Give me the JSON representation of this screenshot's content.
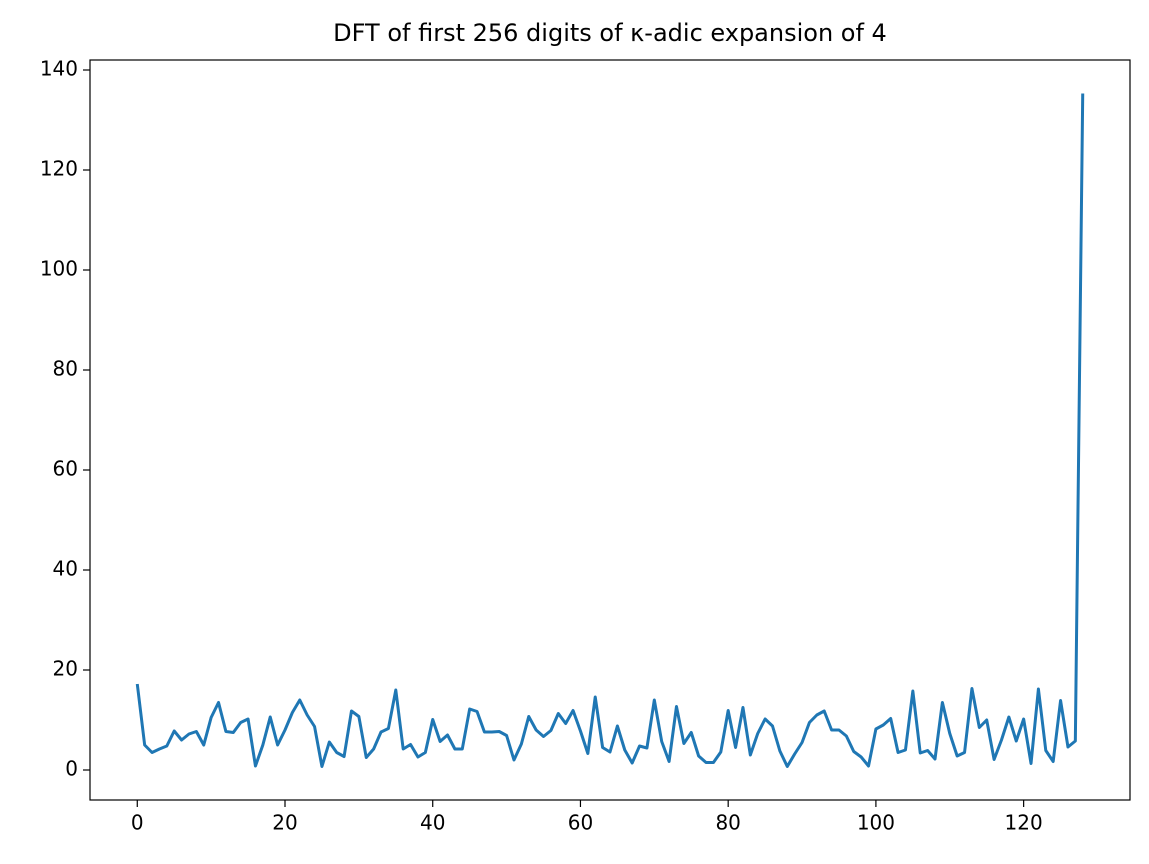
{
  "chart_data": {
    "type": "line",
    "title": "DFT of first 256 digits of κ-adic expansion of 4",
    "x": [
      0,
      1,
      2,
      3,
      4,
      5,
      6,
      7,
      8,
      9,
      10,
      11,
      12,
      13,
      14,
      15,
      16,
      17,
      18,
      19,
      20,
      21,
      22,
      23,
      24,
      25,
      26,
      27,
      28,
      29,
      30,
      31,
      32,
      33,
      34,
      35,
      36,
      37,
      38,
      39,
      40,
      41,
      42,
      43,
      44,
      45,
      46,
      47,
      48,
      49,
      50,
      51,
      52,
      53,
      54,
      55,
      56,
      57,
      58,
      59,
      60,
      61,
      62,
      63,
      64,
      65,
      66,
      67,
      68,
      69,
      70,
      71,
      72,
      73,
      74,
      75,
      76,
      77,
      78,
      79,
      80,
      81,
      82,
      83,
      84,
      85,
      86,
      87,
      88,
      89,
      90,
      91,
      92,
      93,
      94,
      95,
      96,
      97,
      98,
      99,
      100,
      101,
      102,
      103,
      104,
      105,
      106,
      107,
      108,
      109,
      110,
      111,
      112,
      113,
      114,
      115,
      116,
      117,
      118,
      119,
      120,
      121,
      122,
      123,
      124,
      125,
      126,
      127,
      128
    ],
    "series": [
      {
        "color": "#1f77b4",
        "values": [
          17.2,
          5,
          3.5,
          4.2,
          4.8,
          7.8,
          6,
          7.2,
          7.7,
          5,
          10.5,
          13.5,
          7.7,
          7.5,
          9.5,
          10.2,
          0.8,
          5,
          10.6,
          5,
          8,
          11.5,
          14,
          11,
          8.7,
          0.7,
          5.6,
          3.5,
          2.7,
          11.8,
          10.7,
          2.5,
          4.2,
          7.6,
          8.3,
          16,
          4.2,
          5.1,
          2.6,
          3.5,
          10.1,
          5.7,
          7,
          4.2,
          4.2,
          12.2,
          11.7,
          7.6,
          7.6,
          7.7,
          6.9,
          2,
          5.2,
          10.7,
          8,
          6.7,
          7.9,
          11.3,
          9.3,
          11.9,
          7.8,
          3.3,
          14.6,
          4.5,
          3.6,
          8.8,
          4,
          1.4,
          4.8,
          4.4,
          14,
          5.7,
          1.7,
          12.7,
          5.3,
          7.5,
          2.8,
          1.5,
          1.5,
          3.6,
          11.9,
          4.5,
          12.5,
          3,
          7.3,
          10.2,
          8.8,
          3.8,
          0.7,
          3.2,
          5.5,
          9.5,
          11,
          11.8,
          8,
          8,
          6.8,
          3.7,
          2.6,
          0.8,
          8.2,
          9,
          10.3,
          3.5,
          4,
          15.8,
          3.4,
          3.9,
          2.2,
          13.5,
          7.3,
          2.8,
          3.5,
          16.3,
          8.5,
          10,
          2.1,
          6,
          10.6,
          5.8,
          10.2,
          1.3,
          16.2,
          3.9,
          1.7,
          13.9,
          4.6,
          5.8,
          135.3
        ]
      }
    ],
    "xlim": [
      -6.4,
      134.4
    ],
    "xticks": [
      0,
      20,
      40,
      60,
      80,
      100,
      120
    ],
    "ylim": [
      -6.0,
      142.0
    ],
    "yticks": [
      0,
      20,
      40,
      60,
      80,
      100,
      120,
      140
    ],
    "grid": false
  }
}
